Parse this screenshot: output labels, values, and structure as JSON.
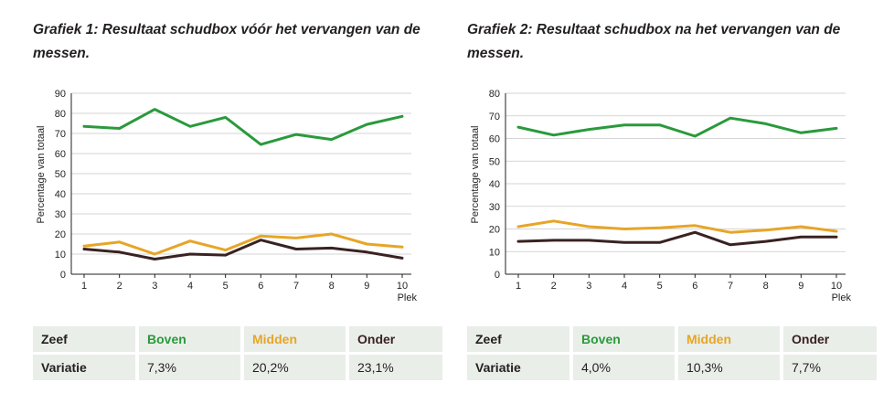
{
  "colors": {
    "boven": "#2a9a3c",
    "midden": "#e7a527",
    "onder": "#3a2222",
    "grid": "#c9c9c9",
    "table_bg": "#e9eee8"
  },
  "chart_data": [
    {
      "type": "line",
      "title": "Grafiek 1: Resultaat schudbox vóór het vervangen van de messen.",
      "xlabel": "Plek",
      "ylabel": "Percentage van totaal",
      "categories": [
        "1",
        "2",
        "3",
        "4",
        "5",
        "6",
        "7",
        "8",
        "9",
        "10"
      ],
      "ylim": [
        0,
        90
      ],
      "yticks": [
        0,
        10,
        20,
        30,
        40,
        50,
        60,
        70,
        80,
        90
      ],
      "grid": true,
      "series": [
        {
          "key": "boven",
          "values": [
            73.5,
            72.5,
            82,
            73.5,
            78,
            64.5,
            69.5,
            67,
            74.5,
            78.5
          ]
        },
        {
          "key": "midden",
          "values": [
            14,
            16,
            10,
            16.5,
            12,
            19,
            18,
            20,
            15,
            13.5
          ]
        },
        {
          "key": "onder",
          "values": [
            12.5,
            11,
            7.5,
            10,
            9.5,
            17,
            12.5,
            13,
            11,
            8
          ]
        }
      ],
      "table": {
        "headers": [
          "Zeef",
          "Boven",
          "Midden",
          "Onder"
        ],
        "row_label": "Variatie",
        "values": [
          "7,3%",
          "20,2%",
          "23,1%"
        ]
      }
    },
    {
      "type": "line",
      "title": "Grafiek 2: Resultaat schudbox na het vervangen van de messen.",
      "xlabel": "Plek",
      "ylabel": "Percentage van totaal",
      "categories": [
        "1",
        "2",
        "3",
        "4",
        "5",
        "6",
        "7",
        "8",
        "9",
        "10"
      ],
      "ylim": [
        0,
        80
      ],
      "yticks": [
        0,
        10,
        20,
        30,
        40,
        50,
        60,
        70,
        80
      ],
      "grid": true,
      "series": [
        {
          "key": "boven",
          "values": [
            65,
            61.5,
            64,
            66,
            66,
            61,
            69,
            66.5,
            62.5,
            64.5
          ]
        },
        {
          "key": "midden",
          "values": [
            21,
            23.5,
            21,
            20,
            20.5,
            21.5,
            18.5,
            19.5,
            21,
            19
          ]
        },
        {
          "key": "onder",
          "values": [
            14.5,
            15,
            15,
            14,
            14,
            18.5,
            13,
            14.5,
            16.5,
            16.5
          ]
        }
      ],
      "table": {
        "headers": [
          "Zeef",
          "Boven",
          "Midden",
          "Onder"
        ],
        "row_label": "Variatie",
        "values": [
          "4,0%",
          "10,3%",
          "7,7%"
        ]
      }
    }
  ]
}
